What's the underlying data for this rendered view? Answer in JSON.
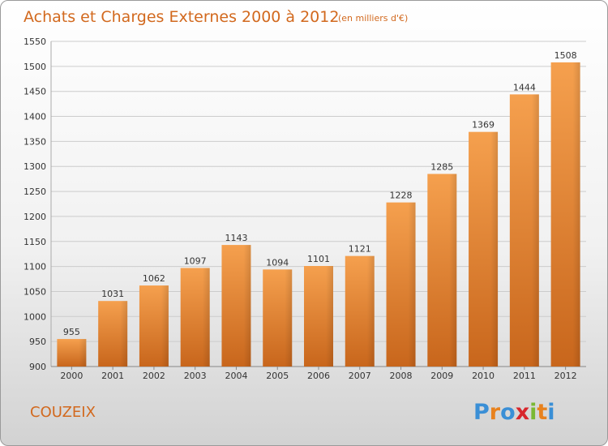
{
  "title": "Achats et Charges Externes 2000 à 2012",
  "subtitle": "(en milliers d'€)",
  "location": "COUZEIX",
  "logo": {
    "text": "Proxiti",
    "letter_colors": [
      "#3a8fd6",
      "#e8821e",
      "#3a8fd6",
      "#d8262c",
      "#7ab833",
      "#e8821e",
      "#3a8fd6"
    ]
  },
  "colors": {
    "bar_top": "#f5a04e",
    "bar_bottom": "#c8661c",
    "accent": "#d2691e"
  },
  "chart_data": {
    "type": "bar",
    "categories": [
      "2000",
      "2001",
      "2002",
      "2003",
      "2004",
      "2005",
      "2006",
      "2007",
      "2008",
      "2009",
      "2010",
      "2011",
      "2012"
    ],
    "values": [
      955,
      1031,
      1062,
      1097,
      1143,
      1094,
      1101,
      1121,
      1228,
      1285,
      1369,
      1444,
      1508
    ],
    "ylim": [
      900,
      1550
    ],
    "yticks": [
      900,
      950,
      1000,
      1050,
      1100,
      1150,
      1200,
      1250,
      1300,
      1350,
      1400,
      1450,
      1500,
      1550
    ],
    "grid": true
  }
}
